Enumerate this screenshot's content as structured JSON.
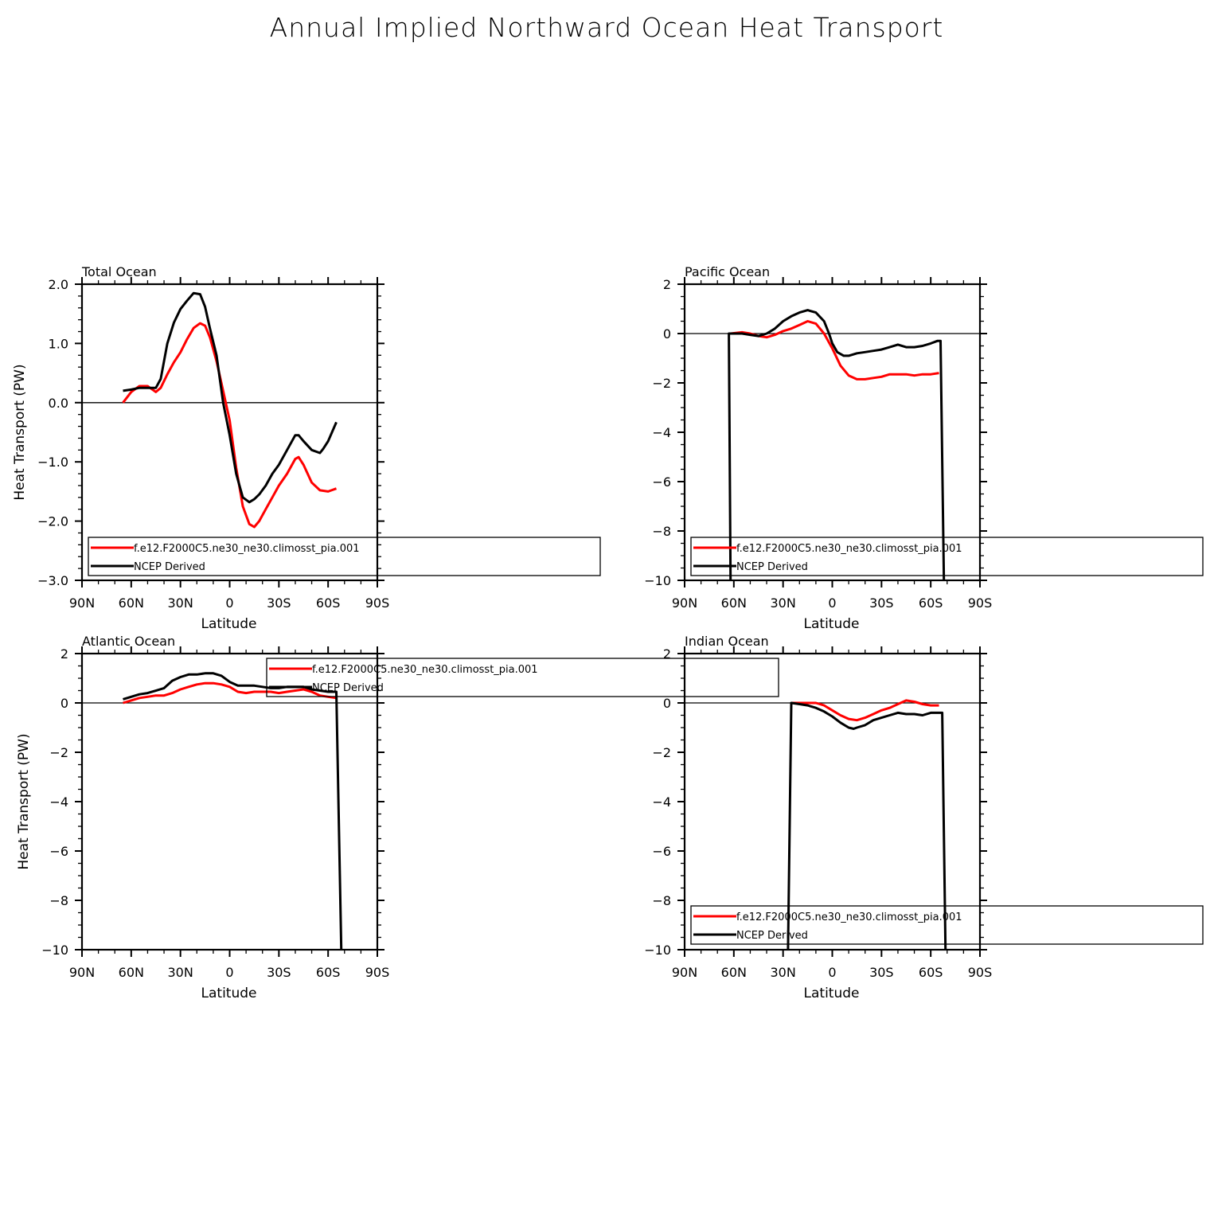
{
  "title": "Annual Implied Northward Ocean Heat Transport",
  "colors": {
    "model": "#ff0000",
    "obs": "#000000"
  },
  "chart_data": [
    {
      "type": "line",
      "title": "Total Ocean",
      "xlabel": "Latitude",
      "ylabel": "Heat Transport (PW)",
      "xlim": [
        90,
        -90
      ],
      "ylim": [
        -3,
        2
      ],
      "xticks": [
        90,
        60,
        30,
        0,
        -30,
        -60,
        -90
      ],
      "xtick_labels": [
        "90N",
        "60N",
        "30N",
        "0",
        "30S",
        "60S",
        "90S"
      ],
      "yticks": [
        -3,
        -2,
        -1,
        0,
        1,
        2
      ],
      "ytick_labels": [
        "−3.0",
        "−2.0",
        "−1.0",
        "0.0",
        "1.0",
        "2.0"
      ],
      "legend": [
        "f.e12.F2000C5.ne30_ne30.climosst_pia.001",
        "NCEP Derived"
      ],
      "series": [
        {
          "name": "f.e12.F2000C5.ne30_ne30.climosst_pia.001",
          "x": [
            65,
            60,
            55,
            50,
            45,
            42,
            38,
            34,
            30,
            26,
            22,
            18,
            15,
            12,
            8,
            4,
            0,
            -4,
            -8,
            -12,
            -15,
            -18,
            -22,
            -26,
            -30,
            -35,
            -40,
            -42,
            -45,
            -50,
            -55,
            -60,
            -65
          ],
          "y": [
            0.0,
            0.18,
            0.28,
            0.28,
            0.18,
            0.25,
            0.48,
            0.68,
            0.85,
            1.07,
            1.26,
            1.34,
            1.3,
            1.1,
            0.7,
            0.2,
            -0.3,
            -1.1,
            -1.75,
            -2.05,
            -2.1,
            -2.0,
            -1.8,
            -1.6,
            -1.4,
            -1.2,
            -0.95,
            -0.92,
            -1.05,
            -1.35,
            -1.48,
            -1.5,
            -1.45
          ]
        },
        {
          "name": "NCEP Derived",
          "x": [
            65,
            60,
            55,
            50,
            45,
            42,
            38,
            34,
            30,
            26,
            22,
            18,
            15,
            12,
            8,
            4,
            0,
            -4,
            -8,
            -12,
            -15,
            -18,
            -22,
            -26,
            -30,
            -35,
            -40,
            -42,
            -45,
            -50,
            -55,
            -57,
            -60,
            -65
          ],
          "y": [
            0.2,
            0.22,
            0.25,
            0.25,
            0.25,
            0.4,
            1.0,
            1.35,
            1.58,
            1.72,
            1.85,
            1.83,
            1.62,
            1.25,
            0.8,
            0.0,
            -0.55,
            -1.2,
            -1.6,
            -1.68,
            -1.63,
            -1.55,
            -1.4,
            -1.2,
            -1.05,
            -0.8,
            -0.55,
            -0.55,
            -0.65,
            -0.8,
            -0.85,
            -0.78,
            -0.65,
            -0.33
          ]
        }
      ]
    },
    {
      "type": "line",
      "title": "Pacific Ocean",
      "xlabel": "Latitude",
      "ylabel": "",
      "xlim": [
        90,
        -90
      ],
      "ylim": [
        -10,
        2
      ],
      "xticks": [
        90,
        60,
        30,
        0,
        -30,
        -60,
        -90
      ],
      "xtick_labels": [
        "90N",
        "60N",
        "30N",
        "0",
        "30S",
        "60S",
        "90S"
      ],
      "yticks": [
        -10,
        -8,
        -6,
        -4,
        -2,
        0,
        2
      ],
      "ytick_labels": [
        "−10",
        "−8",
        "−6",
        "−4",
        "−2",
        "0",
        "2"
      ],
      "legend": [
        "f.e12.F2000C5.ne30_ne30.climosst_pia.001",
        "NCEP Derived"
      ],
      "series": [
        {
          "name": "f.e12.F2000C5.ne30_ne30.climosst_pia.001",
          "x": [
            62,
            55,
            50,
            45,
            40,
            35,
            30,
            25,
            20,
            15,
            10,
            5,
            0,
            -5,
            -10,
            -15,
            -20,
            -25,
            -30,
            -35,
            -40,
            -45,
            -50,
            -55,
            -60,
            -65
          ],
          "y": [
            0.0,
            0.05,
            0.0,
            -0.1,
            -0.15,
            -0.05,
            0.1,
            0.2,
            0.35,
            0.5,
            0.4,
            0.0,
            -0.6,
            -1.3,
            -1.7,
            -1.85,
            -1.85,
            -1.8,
            -1.75,
            -1.65,
            -1.65,
            -1.65,
            -1.7,
            -1.65,
            -1.65,
            -1.6
          ]
        },
        {
          "name": "NCEP Derived",
          "x": [
            62,
            63,
            60,
            55,
            50,
            45,
            40,
            35,
            30,
            25,
            20,
            15,
            10,
            5,
            2,
            0,
            -3,
            -7,
            -10,
            -15,
            -20,
            -25,
            -30,
            -35,
            -40,
            -45,
            -50,
            -55,
            -60,
            -64,
            -66,
            -68
          ],
          "y": [
            -10.0,
            0.0,
            0.0,
            0.0,
            -0.05,
            -0.1,
            0.0,
            0.2,
            0.5,
            0.7,
            0.85,
            0.95,
            0.85,
            0.5,
            0.0,
            -0.4,
            -0.75,
            -0.9,
            -0.9,
            -0.8,
            -0.75,
            -0.7,
            -0.65,
            -0.55,
            -0.45,
            -0.55,
            -0.55,
            -0.5,
            -0.4,
            -0.3,
            -0.3,
            -10.0
          ]
        }
      ]
    },
    {
      "type": "line",
      "title": "Atlantic Ocean",
      "xlabel": "Latitude",
      "ylabel": "Heat Transport (PW)",
      "xlim": [
        90,
        -90
      ],
      "ylim": [
        -10,
        2
      ],
      "xticks": [
        90,
        60,
        30,
        0,
        -30,
        -60,
        -90
      ],
      "xtick_labels": [
        "90N",
        "60N",
        "30N",
        "0",
        "30S",
        "60S",
        "90S"
      ],
      "yticks": [
        -10,
        -8,
        -6,
        -4,
        -2,
        0,
        2
      ],
      "ytick_labels": [
        "−10",
        "−8",
        "−6",
        "−4",
        "−2",
        "0",
        "2"
      ],
      "legend": [
        "f.e12.F2000C5.ne30_ne30.climosst_pia.001",
        "NCEP Derived"
      ],
      "series": [
        {
          "name": "f.e12.F2000C5.ne30_ne30.climosst_pia.001",
          "x": [
            65,
            60,
            55,
            50,
            45,
            40,
            35,
            30,
            25,
            20,
            15,
            10,
            5,
            0,
            -5,
            -10,
            -15,
            -20,
            -25,
            -30,
            -35,
            -40,
            -45,
            -50,
            -55,
            -60,
            -65
          ],
          "y": [
            0.0,
            0.1,
            0.2,
            0.25,
            0.3,
            0.3,
            0.4,
            0.55,
            0.65,
            0.75,
            0.8,
            0.8,
            0.75,
            0.65,
            0.45,
            0.4,
            0.45,
            0.45,
            0.45,
            0.4,
            0.45,
            0.5,
            0.55,
            0.45,
            0.3,
            0.25,
            0.2
          ]
        },
        {
          "name": "NCEP Derived",
          "x": [
            65,
            60,
            55,
            50,
            45,
            40,
            35,
            30,
            25,
            20,
            15,
            10,
            5,
            0,
            -5,
            -10,
            -15,
            -20,
            -25,
            -30,
            -35,
            -40,
            -45,
            -50,
            -55,
            -60,
            -65,
            -68
          ],
          "y": [
            0.15,
            0.25,
            0.35,
            0.4,
            0.5,
            0.6,
            0.9,
            1.05,
            1.15,
            1.15,
            1.2,
            1.2,
            1.1,
            0.85,
            0.7,
            0.7,
            0.7,
            0.65,
            0.6,
            0.6,
            0.65,
            0.65,
            0.65,
            0.55,
            0.5,
            0.45,
            0.45,
            -10.0
          ]
        }
      ]
    },
    {
      "type": "line",
      "title": "Indian Ocean",
      "xlabel": "Latitude",
      "ylabel": "",
      "xlim": [
        90,
        -90
      ],
      "ylim": [
        -10,
        2
      ],
      "xticks": [
        90,
        60,
        30,
        0,
        -30,
        -60,
        -90
      ],
      "xtick_labels": [
        "90N",
        "60N",
        "30N",
        "0",
        "30S",
        "60S",
        "90S"
      ],
      "yticks": [
        -10,
        -8,
        -6,
        -4,
        -2,
        0,
        2
      ],
      "ytick_labels": [
        "−10",
        "−8",
        "−6",
        "−4",
        "−2",
        "0",
        "2"
      ],
      "legend": [
        "f.e12.F2000C5.ne30_ne30.climosst_pia.001",
        "NCEP Derived"
      ],
      "series": [
        {
          "name": "f.e12.F2000C5.ne30_ne30.climosst_pia.001",
          "x": [
            25,
            20,
            15,
            10,
            5,
            0,
            -5,
            -10,
            -15,
            -20,
            -25,
            -30,
            -35,
            -40,
            -45,
            -50,
            -55,
            -60,
            -65
          ],
          "y": [
            0.0,
            0.0,
            0.0,
            0.0,
            -0.1,
            -0.3,
            -0.5,
            -0.65,
            -0.7,
            -0.6,
            -0.45,
            -0.3,
            -0.2,
            -0.05,
            0.1,
            0.05,
            -0.05,
            -0.1,
            -0.1
          ]
        },
        {
          "name": "NCEP Derived",
          "x": [
            27,
            25,
            20,
            15,
            10,
            5,
            0,
            -5,
            -10,
            -13,
            -15,
            -20,
            -25,
            -30,
            -35,
            -40,
            -45,
            -50,
            -55,
            -60,
            -65,
            -67,
            -69
          ],
          "y": [
            -10.0,
            0.0,
            -0.05,
            -0.1,
            -0.2,
            -0.35,
            -0.55,
            -0.8,
            -1.0,
            -1.05,
            -1.0,
            -0.9,
            -0.7,
            -0.6,
            -0.5,
            -0.4,
            -0.45,
            -0.45,
            -0.5,
            -0.4,
            -0.4,
            -0.4,
            -10.0
          ]
        }
      ]
    }
  ]
}
